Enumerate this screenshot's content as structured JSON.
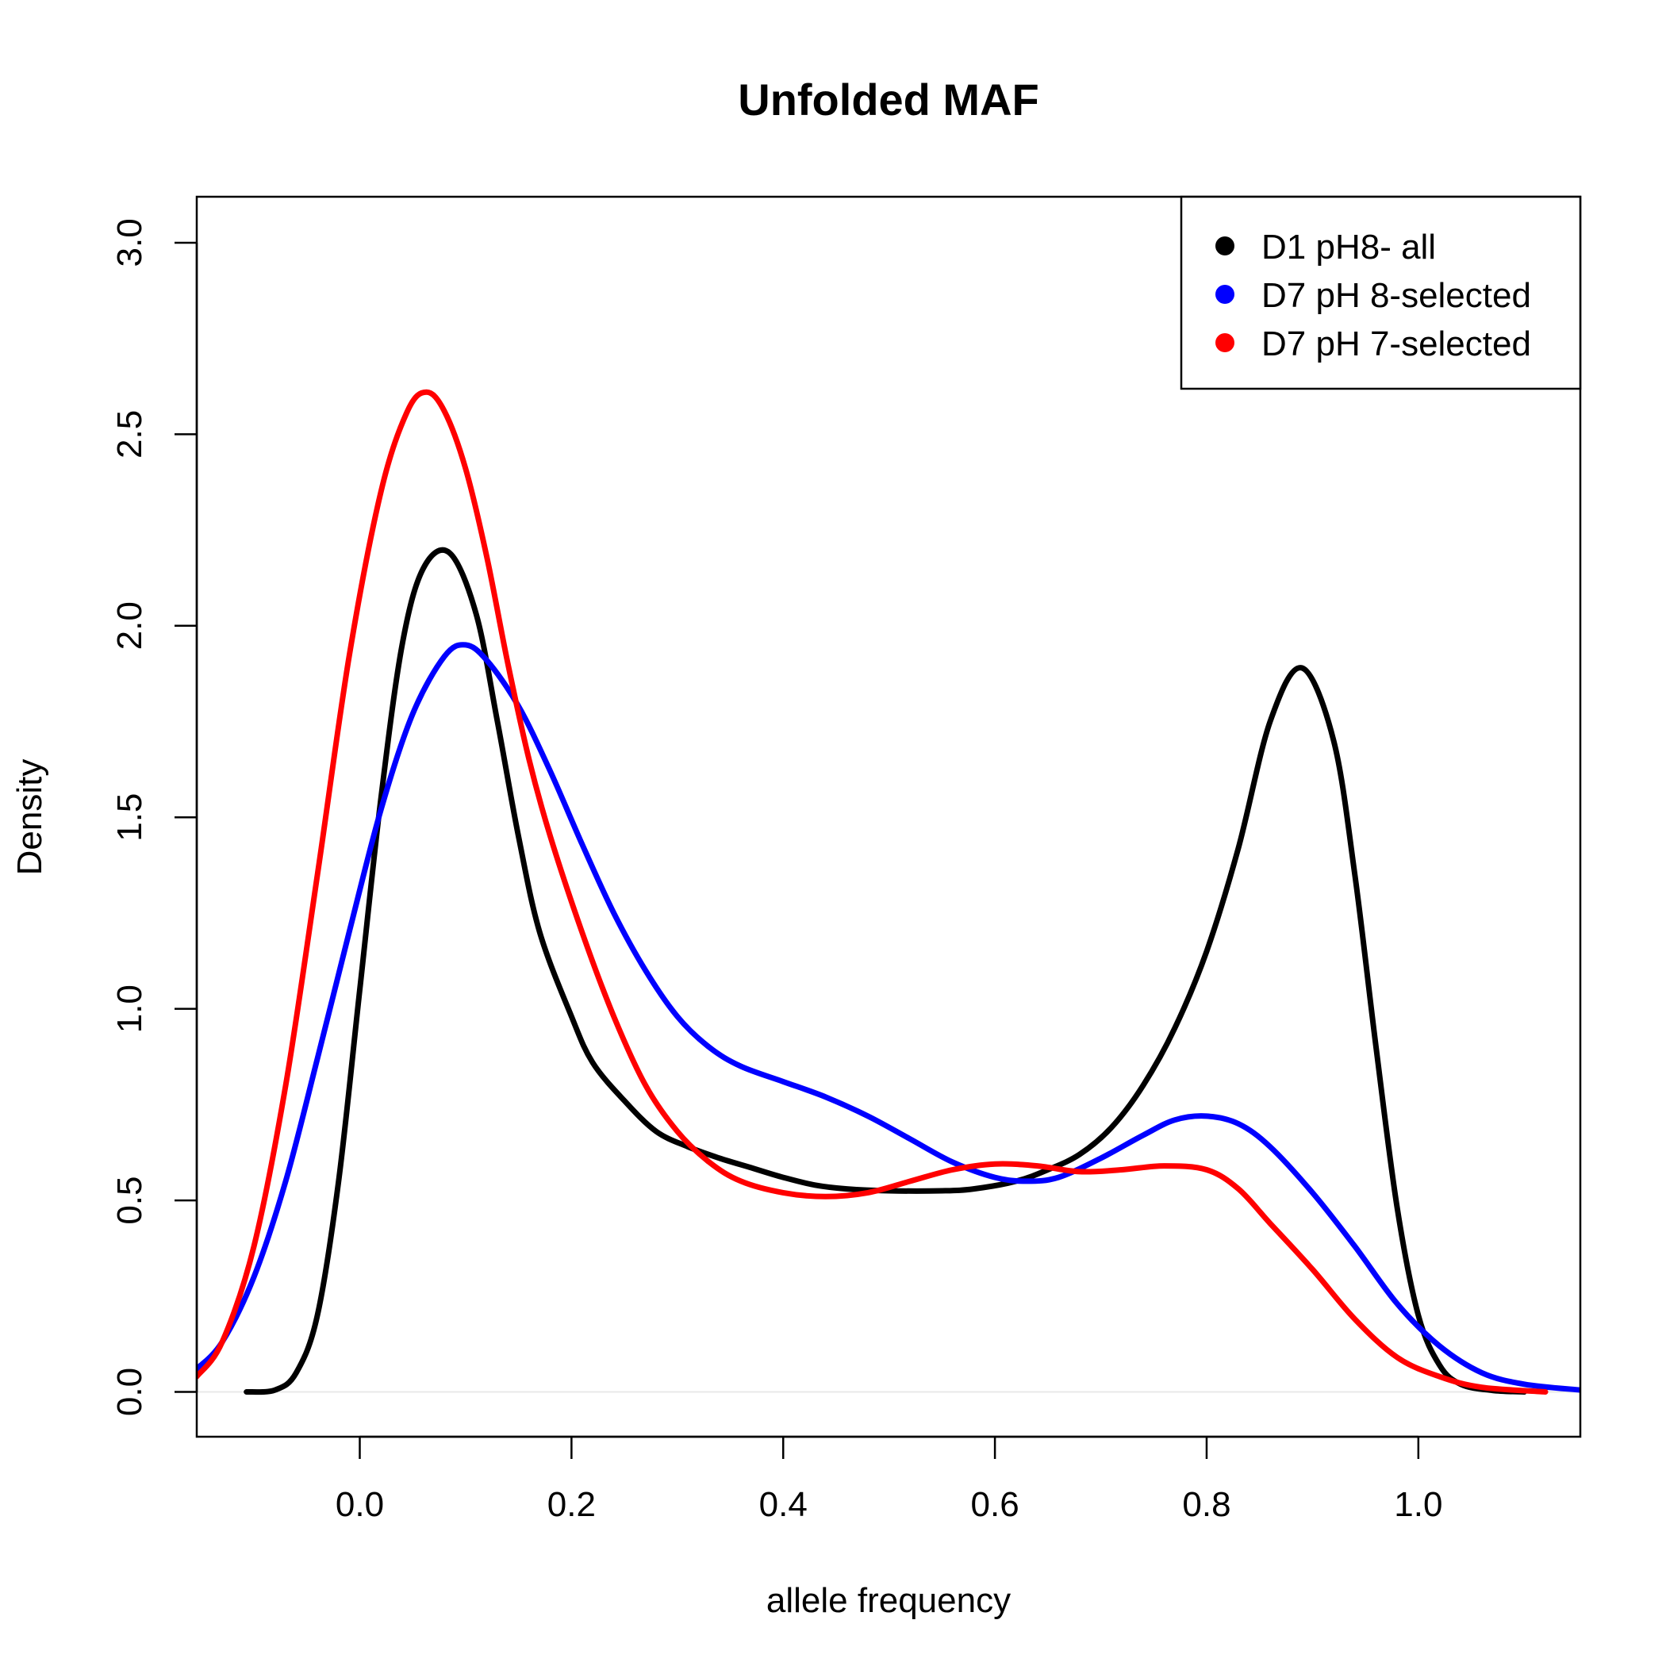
{
  "chart_data": {
    "type": "line",
    "title": "Unfolded MAF",
    "xlabel": "allele frequency",
    "ylabel": "Density",
    "xlim": [
      -0.154,
      1.153
    ],
    "ylim": [
      -0.117,
      3.12
    ],
    "x_ticks": [
      0.0,
      0.2,
      0.4,
      0.6,
      0.8,
      1.0
    ],
    "x_tick_labels": [
      "0.0",
      "0.2",
      "0.4",
      "0.6",
      "0.8",
      "1.0"
    ],
    "y_ticks": [
      0.0,
      0.5,
      1.0,
      1.5,
      2.0,
      2.5,
      3.0
    ],
    "y_tick_labels": [
      "0.0",
      "0.5",
      "1.0",
      "1.5",
      "2.0",
      "2.5",
      "3.0"
    ],
    "grid": false,
    "zero_line": true,
    "legend_position": "top-right",
    "series": [
      {
        "name": "D1 pH8- all",
        "color": "#000000",
        "points": [
          [
            -0.107,
            0.0
          ],
          [
            -0.08,
            0.005
          ],
          [
            -0.06,
            0.05
          ],
          [
            -0.04,
            0.2
          ],
          [
            -0.02,
            0.55
          ],
          [
            0.0,
            1.05
          ],
          [
            0.02,
            1.55
          ],
          [
            0.04,
            1.95
          ],
          [
            0.06,
            2.15
          ],
          [
            0.085,
            2.19
          ],
          [
            0.11,
            2.03
          ],
          [
            0.13,
            1.75
          ],
          [
            0.15,
            1.45
          ],
          [
            0.17,
            1.2
          ],
          [
            0.2,
            0.98
          ],
          [
            0.22,
            0.86
          ],
          [
            0.25,
            0.76
          ],
          [
            0.28,
            0.68
          ],
          [
            0.31,
            0.64
          ],
          [
            0.34,
            0.61
          ],
          [
            0.37,
            0.585
          ],
          [
            0.4,
            0.56
          ],
          [
            0.43,
            0.54
          ],
          [
            0.46,
            0.53
          ],
          [
            0.5,
            0.525
          ],
          [
            0.55,
            0.525
          ],
          [
            0.58,
            0.53
          ],
          [
            0.62,
            0.55
          ],
          [
            0.65,
            0.58
          ],
          [
            0.68,
            0.62
          ],
          [
            0.71,
            0.69
          ],
          [
            0.74,
            0.8
          ],
          [
            0.77,
            0.95
          ],
          [
            0.8,
            1.15
          ],
          [
            0.83,
            1.42
          ],
          [
            0.86,
            1.75
          ],
          [
            0.89,
            1.89
          ],
          [
            0.92,
            1.7
          ],
          [
            0.94,
            1.35
          ],
          [
            0.96,
            0.9
          ],
          [
            0.98,
            0.48
          ],
          [
            1.0,
            0.2
          ],
          [
            1.02,
            0.07
          ],
          [
            1.04,
            0.02
          ],
          [
            1.07,
            0.004
          ],
          [
            1.1,
            0.0
          ]
        ]
      },
      {
        "name": "D7 pH 8-selected",
        "color": "#0000ff",
        "points": [
          [
            -0.154,
            0.06
          ],
          [
            -0.13,
            0.13
          ],
          [
            -0.1,
            0.3
          ],
          [
            -0.07,
            0.55
          ],
          [
            -0.04,
            0.87
          ],
          [
            -0.01,
            1.2
          ],
          [
            0.02,
            1.52
          ],
          [
            0.05,
            1.77
          ],
          [
            0.08,
            1.92
          ],
          [
            0.1,
            1.95
          ],
          [
            0.12,
            1.91
          ],
          [
            0.15,
            1.79
          ],
          [
            0.18,
            1.62
          ],
          [
            0.21,
            1.43
          ],
          [
            0.24,
            1.25
          ],
          [
            0.27,
            1.1
          ],
          [
            0.3,
            0.98
          ],
          [
            0.33,
            0.9
          ],
          [
            0.36,
            0.85
          ],
          [
            0.4,
            0.81
          ],
          [
            0.44,
            0.77
          ],
          [
            0.48,
            0.72
          ],
          [
            0.52,
            0.66
          ],
          [
            0.56,
            0.6
          ],
          [
            0.6,
            0.56
          ],
          [
            0.63,
            0.55
          ],
          [
            0.66,
            0.56
          ],
          [
            0.7,
            0.61
          ],
          [
            0.74,
            0.67
          ],
          [
            0.77,
            0.71
          ],
          [
            0.8,
            0.72
          ],
          [
            0.83,
            0.7
          ],
          [
            0.86,
            0.64
          ],
          [
            0.9,
            0.52
          ],
          [
            0.94,
            0.38
          ],
          [
            0.98,
            0.23
          ],
          [
            1.02,
            0.12
          ],
          [
            1.06,
            0.05
          ],
          [
            1.1,
            0.02
          ],
          [
            1.153,
            0.005
          ]
        ]
      },
      {
        "name": "D7 pH 7-selected",
        "color": "#ff0000",
        "points": [
          [
            -0.154,
            0.04
          ],
          [
            -0.13,
            0.13
          ],
          [
            -0.1,
            0.38
          ],
          [
            -0.07,
            0.8
          ],
          [
            -0.04,
            1.35
          ],
          [
            -0.01,
            1.92
          ],
          [
            0.02,
            2.35
          ],
          [
            0.045,
            2.56
          ],
          [
            0.063,
            2.61
          ],
          [
            0.08,
            2.56
          ],
          [
            0.1,
            2.41
          ],
          [
            0.12,
            2.18
          ],
          [
            0.14,
            1.9
          ],
          [
            0.16,
            1.65
          ],
          [
            0.18,
            1.45
          ],
          [
            0.21,
            1.2
          ],
          [
            0.24,
            0.98
          ],
          [
            0.27,
            0.8
          ],
          [
            0.3,
            0.68
          ],
          [
            0.33,
            0.6
          ],
          [
            0.36,
            0.55
          ],
          [
            0.4,
            0.52
          ],
          [
            0.44,
            0.51
          ],
          [
            0.48,
            0.52
          ],
          [
            0.52,
            0.55
          ],
          [
            0.56,
            0.58
          ],
          [
            0.6,
            0.595
          ],
          [
            0.64,
            0.59
          ],
          [
            0.68,
            0.575
          ],
          [
            0.72,
            0.58
          ],
          [
            0.76,
            0.59
          ],
          [
            0.8,
            0.58
          ],
          [
            0.83,
            0.53
          ],
          [
            0.86,
            0.44
          ],
          [
            0.9,
            0.32
          ],
          [
            0.94,
            0.19
          ],
          [
            0.98,
            0.09
          ],
          [
            1.02,
            0.04
          ],
          [
            1.06,
            0.012
          ],
          [
            1.12,
            0.0
          ]
        ]
      }
    ]
  }
}
